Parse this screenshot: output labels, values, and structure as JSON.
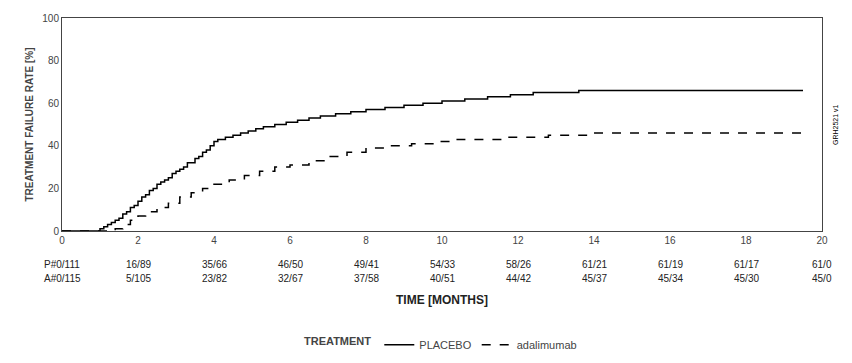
{
  "chart_data": {
    "type": "step",
    "ylabel": "TREATMENT FAILURE RATE [%]",
    "xlabel": "TIME [MONTHS]",
    "xlim": [
      0,
      20
    ],
    "ylim": [
      0,
      100
    ],
    "xticks": [
      0,
      2,
      4,
      6,
      8,
      10,
      12,
      14,
      16,
      18,
      20
    ],
    "yticks": [
      0,
      20,
      40,
      60,
      80,
      100
    ],
    "grid": false,
    "legend": "bottom",
    "legend_title": "TREATMENT",
    "series": [
      {
        "name": "PLACEBO",
        "color": "#000000",
        "line_style": "solid",
        "x": [
          0,
          0.9,
          1.0,
          1.1,
          1.2,
          1.3,
          1.4,
          1.5,
          1.6,
          1.7,
          1.8,
          1.9,
          2.0,
          2.1,
          2.2,
          2.3,
          2.4,
          2.5,
          2.6,
          2.7,
          2.8,
          2.9,
          3.0,
          3.1,
          3.2,
          3.3,
          3.5,
          3.6,
          3.7,
          3.8,
          3.9,
          4.0,
          4.1,
          4.3,
          4.5,
          4.7,
          4.9,
          5.1,
          5.3,
          5.6,
          5.9,
          6.2,
          6.5,
          6.8,
          7.2,
          7.6,
          8.0,
          8.5,
          9.0,
          9.5,
          10.0,
          10.6,
          11.2,
          11.8,
          12.4,
          13.0,
          13.6,
          14.0,
          19.5
        ],
        "values": [
          0,
          0,
          1,
          2,
          3,
          4,
          5,
          6,
          8,
          9,
          11,
          12,
          14,
          16,
          17,
          19,
          20,
          22,
          23,
          24,
          25,
          27,
          28,
          29,
          30,
          32,
          34,
          35,
          37,
          38,
          40,
          42,
          43,
          44,
          45,
          46,
          47,
          48,
          49,
          50,
          51,
          52,
          53,
          54,
          55,
          56,
          57,
          58,
          59,
          60,
          61,
          62,
          63,
          64,
          65,
          65,
          66,
          66,
          66
        ]
      },
      {
        "name": "adalimumab",
        "color": "#000000",
        "line_style": "dashed",
        "x": [
          0,
          1.2,
          1.4,
          1.6,
          1.8,
          2.0,
          2.2,
          2.5,
          2.8,
          3.1,
          3.4,
          3.7,
          4.0,
          4.4,
          4.8,
          5.2,
          5.6,
          6.0,
          6.5,
          7.0,
          7.5,
          8.0,
          8.6,
          9.2,
          9.8,
          10.4,
          11.0,
          11.6,
          12.2,
          12.8,
          13.4,
          14.0,
          19.5
        ],
        "values": [
          0,
          0,
          1,
          3,
          5,
          7,
          9,
          11,
          13,
          16,
          18,
          20,
          22,
          24,
          26,
          28,
          30,
          31,
          33,
          35,
          37,
          39,
          40,
          41,
          42,
          43,
          43,
          44,
          44,
          45,
          45,
          46,
          46
        ]
      }
    ],
    "table": {
      "x": [
        0,
        2,
        4,
        6,
        8,
        10,
        12,
        14,
        16,
        18,
        20
      ],
      "rows": [
        [
          "P#0/111",
          "16/89",
          "35/66",
          "46/50",
          "49/41",
          "54/33",
          "58/26",
          "61/21",
          "61/19",
          "61/17",
          "61/0"
        ],
        [
          "A#0/115",
          "5/105",
          "23/82",
          "32/67",
          "37/58",
          "40/51",
          "44/42",
          "45/37",
          "45/34",
          "45/30",
          "45/0"
        ]
      ]
    },
    "watermark": "GRH2521 v1"
  }
}
